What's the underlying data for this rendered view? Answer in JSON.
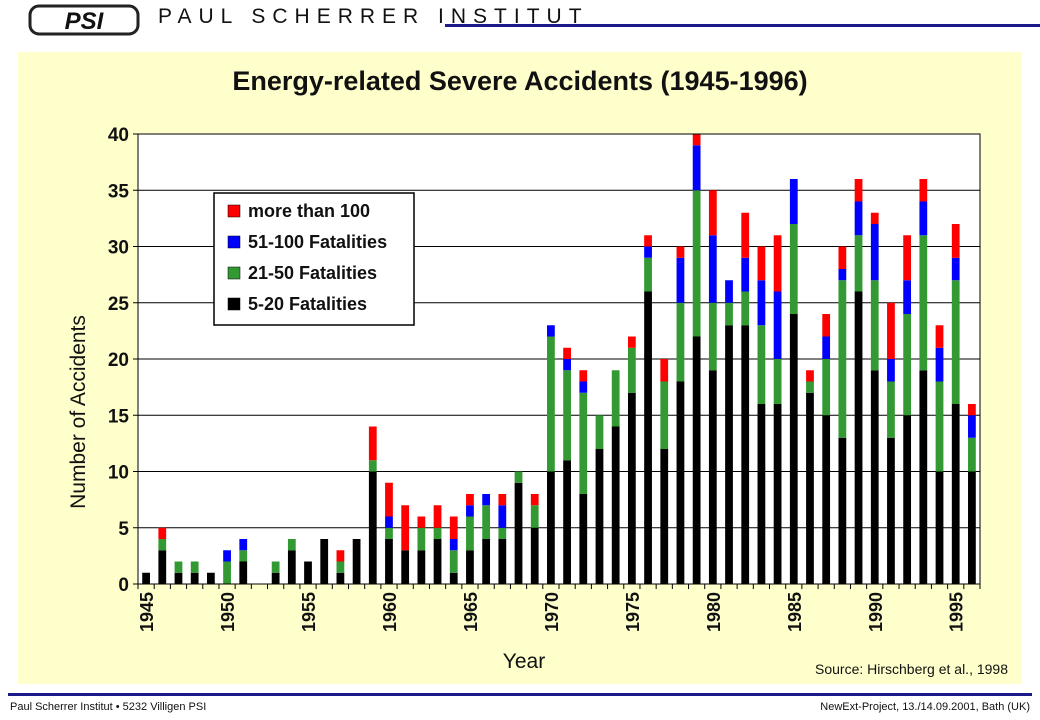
{
  "header": {
    "logo_text": "PSI",
    "org_name": "PAUL SCHERRER INSTITUT"
  },
  "footer": {
    "left": "Paul Scherrer Institut • 5232 Villigen PSI",
    "right": "NewExt-Project, 13./14.09.2001, Bath (UK)"
  },
  "colors": {
    "c5_20": "#000000",
    "c21_50": "#339933",
    "c51_100": "#0000ff",
    "c100": "#ff0000",
    "panel": "#ffffcc",
    "frame": "#1a1a8a"
  },
  "chart_data": {
    "type": "bar",
    "stacked": true,
    "title": "Energy-related Severe Accidents (1945-1996)",
    "xlabel": "Year",
    "ylabel": "Number of Accidents",
    "ylim": [
      0,
      40
    ],
    "yticks": [
      "0",
      "5",
      "10",
      "15",
      "20",
      "25",
      "30",
      "35",
      "40"
    ],
    "xticks": [
      "1945",
      "1950",
      "1955",
      "1960",
      "1965",
      "1970",
      "1975",
      "1980",
      "1985",
      "1990",
      "1995"
    ],
    "grid": true,
    "legend_position": "top-left",
    "source": "Source: Hirschberg et al., 1998",
    "x": [
      1945,
      1946,
      1947,
      1948,
      1949,
      1950,
      1951,
      1952,
      1953,
      1954,
      1955,
      1956,
      1957,
      1958,
      1959,
      1960,
      1961,
      1962,
      1963,
      1964,
      1965,
      1966,
      1967,
      1968,
      1969,
      1970,
      1971,
      1972,
      1973,
      1974,
      1975,
      1976,
      1977,
      1978,
      1979,
      1980,
      1981,
      1982,
      1983,
      1984,
      1985,
      1986,
      1987,
      1988,
      1989,
      1990,
      1991,
      1992,
      1993,
      1994,
      1995,
      1996
    ],
    "series": [
      {
        "name": "5-20 Fatalities",
        "values": [
          1,
          3,
          1,
          1,
          1,
          0,
          2,
          0,
          1,
          3,
          2,
          4,
          1,
          4,
          10,
          4,
          3,
          3,
          4,
          1,
          3,
          4,
          4,
          9,
          5,
          10,
          11,
          8,
          12,
          14,
          17,
          26,
          12,
          18,
          22,
          19,
          23,
          23,
          16,
          16,
          24,
          17,
          15,
          13,
          26,
          19,
          13,
          15,
          19,
          10,
          16,
          10
        ]
      },
      {
        "name": "21-50 Fatalities",
        "values": [
          0,
          1,
          1,
          1,
          0,
          2,
          1,
          0,
          1,
          1,
          0,
          0,
          1,
          0,
          1,
          1,
          0,
          2,
          1,
          2,
          3,
          3,
          1,
          1,
          2,
          12,
          8,
          9,
          3,
          5,
          4,
          3,
          6,
          7,
          13,
          6,
          2,
          3,
          7,
          4,
          8,
          1,
          5,
          14,
          5,
          8,
          5,
          9,
          12,
          8,
          11,
          3
        ]
      },
      {
        "name": "51-100 Fatalities",
        "values": [
          0,
          0,
          0,
          0,
          0,
          1,
          1,
          0,
          0,
          0,
          0,
          0,
          0,
          0,
          0,
          1,
          0,
          0,
          0,
          1,
          1,
          1,
          2,
          0,
          0,
          1,
          1,
          1,
          0,
          0,
          0,
          1,
          0,
          4,
          4,
          6,
          2,
          3,
          4,
          6,
          4,
          0,
          2,
          1,
          3,
          5,
          2,
          3,
          3,
          3,
          2,
          2
        ]
      },
      {
        "name": "more than 100",
        "values": [
          0,
          1,
          0,
          0,
          0,
          0,
          0,
          0,
          0,
          0,
          0,
          0,
          1,
          0,
          3,
          3,
          4,
          1,
          2,
          2,
          1,
          0,
          1,
          0,
          1,
          0,
          1,
          1,
          0,
          0,
          1,
          1,
          2,
          1,
          1,
          4,
          0,
          4,
          3,
          5,
          0,
          1,
          2,
          2,
          2,
          1,
          5,
          4,
          2,
          2,
          3,
          1
        ]
      }
    ]
  }
}
